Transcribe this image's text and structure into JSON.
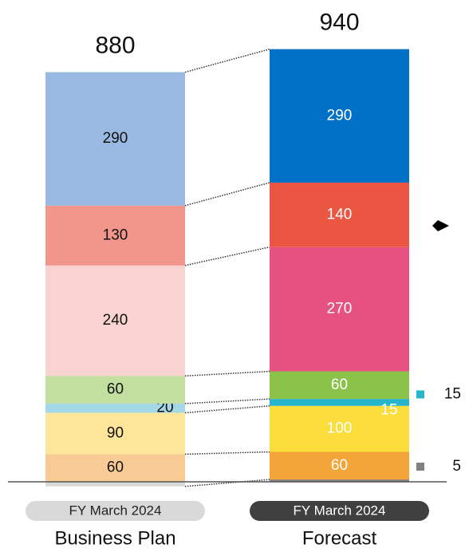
{
  "chart_data": {
    "type": "stacked_bar",
    "categories": [
      null,
      null,
      null,
      null,
      null,
      null,
      null,
      null
    ],
    "series": [
      {
        "name": "Business Plan",
        "period": "FY March 2024",
        "total": 880,
        "values": [
          -10,
          60,
          90,
          20,
          60,
          240,
          130,
          290
        ],
        "colors": [
          "#d9d9d9",
          "#f9cb94",
          "#fde599",
          "#a4d8e9",
          "#c3dfa0",
          "#f9d3cf",
          "#f2958b",
          "#99b9e2"
        ]
      },
      {
        "name": "Forecast",
        "period": "FY March 2024",
        "total": 940,
        "values": [
          5,
          60,
          100,
          15,
          60,
          270,
          140,
          290
        ],
        "colors": [
          "#808080",
          "#f3a53a",
          "#fbdd3c",
          "#27b5cc",
          "#8bc34a",
          "#e5527f",
          "#eb5643",
          "#0071c6"
        ]
      }
    ]
  }
}
